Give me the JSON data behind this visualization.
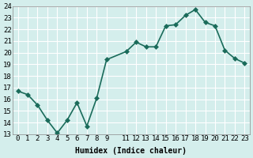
{
  "x": [
    0,
    1,
    2,
    3,
    4,
    5,
    6,
    7,
    8,
    9,
    11,
    12,
    13,
    14,
    15,
    16,
    17,
    18,
    19,
    20,
    21,
    22,
    23
  ],
  "y": [
    16.7,
    16.4,
    15.5,
    14.2,
    13.1,
    14.2,
    15.7,
    13.7,
    16.1,
    19.4,
    20.1,
    20.9,
    20.5,
    20.5,
    22.3,
    22.4,
    23.2,
    23.7,
    22.6,
    22.3,
    20.2,
    19.5,
    19.1
  ],
  "line_color": "#1a6b5a",
  "marker_color": "#1a6b5a",
  "bg_color": "#d4eeec",
  "grid_color": "#ffffff",
  "xlabel": "Humidex (Indice chaleur)",
  "xlim": [
    -0.5,
    23.5
  ],
  "ylim": [
    13,
    24
  ],
  "yticks": [
    13,
    14,
    15,
    16,
    17,
    18,
    19,
    20,
    21,
    22,
    23,
    24
  ],
  "xticks_pos": [
    0,
    1,
    2,
    3,
    4,
    5,
    6,
    7,
    8,
    9,
    11,
    12,
    13,
    14,
    15,
    16,
    17,
    18,
    19,
    20,
    21,
    22,
    23
  ],
  "xtick_labels": [
    "0",
    "1",
    "2",
    "3",
    "4",
    "5",
    "6",
    "7",
    "8",
    "9",
    "11",
    "12",
    "13",
    "14",
    "15",
    "16",
    "17",
    "18",
    "19",
    "20",
    "21",
    "22",
    "23"
  ],
  "xlabel_fontsize": 7,
  "tick_fontsize": 6.5,
  "line_width": 1.2,
  "marker_size": 3
}
